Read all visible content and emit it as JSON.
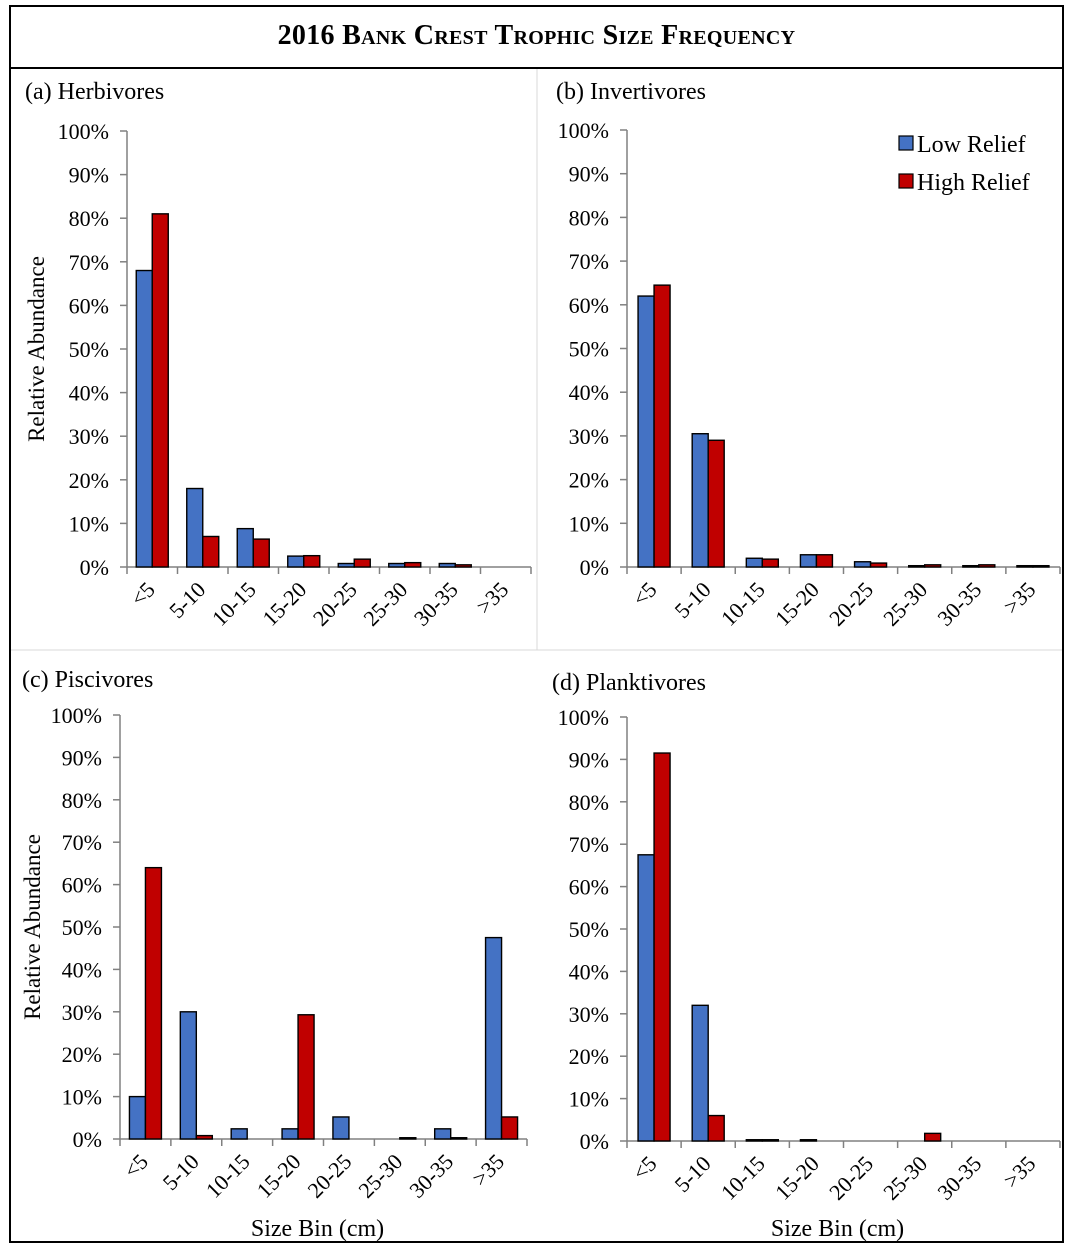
{
  "figure_title": "2016 Bank Crest Trophic Size Frequency",
  "colors": {
    "low_relief": "#4472C4",
    "high_relief": "#C00000",
    "axis": "#808080"
  },
  "legend": [
    "Low Relief",
    "High Relief"
  ],
  "chart_data": [
    {
      "type": "bar",
      "title": "(a) Herbivores",
      "xlabel": "",
      "ylabel": "Relative Abundance",
      "categories": [
        "<5",
        "5-10",
        "10-15",
        "15-20",
        "20-25",
        "25-30",
        "30-35",
        ">35"
      ],
      "yticks": [
        "0%",
        "10%",
        "20%",
        "30%",
        "40%",
        "50%",
        "60%",
        "70%",
        "80%",
        "90%",
        "100%"
      ],
      "ylim": [
        0,
        100
      ],
      "series": [
        {
          "name": "Low Relief",
          "values": [
            68,
            18,
            8.8,
            2.5,
            0.8,
            0.8,
            0.8,
            0
          ]
        },
        {
          "name": "High Relief",
          "values": [
            81,
            7,
            6.4,
            2.6,
            1.8,
            1.0,
            0.5,
            0
          ]
        }
      ]
    },
    {
      "type": "bar",
      "title": "(b) Invertivores",
      "xlabel": "",
      "ylabel": "",
      "categories": [
        "<5",
        "5-10",
        "10-15",
        "15-20",
        "20-25",
        "25-30",
        "30-35",
        ">35"
      ],
      "yticks": [
        "0%",
        "10%",
        "20%",
        "30%",
        "40%",
        "50%",
        "60%",
        "70%",
        "80%",
        "90%",
        "100%"
      ],
      "ylim": [
        0,
        100
      ],
      "legend": "top-right",
      "series": [
        {
          "name": "Low Relief",
          "values": [
            62,
            30.5,
            2,
            2.8,
            1.2,
            0.3,
            0.3,
            0.3
          ]
        },
        {
          "name": "High Relief",
          "values": [
            64.5,
            29,
            1.8,
            2.8,
            0.9,
            0.5,
            0.5,
            0.3
          ]
        }
      ]
    },
    {
      "type": "bar",
      "title": "(c) Piscivores",
      "xlabel": "Size Bin (cm)",
      "ylabel": "Relative Abundance",
      "categories": [
        "<5",
        "5-10",
        "10-15",
        "15-20",
        "20-25",
        "25-30",
        "30-35",
        ">35"
      ],
      "yticks": [
        "0%",
        "10%",
        "20%",
        "30%",
        "40%",
        "50%",
        "60%",
        "70%",
        "80%",
        "90%",
        "100%"
      ],
      "ylim": [
        0,
        100
      ],
      "series": [
        {
          "name": "Low Relief",
          "values": [
            10,
            30,
            2.4,
            2.4,
            5.2,
            0,
            2.4,
            47.5
          ]
        },
        {
          "name": "High Relief",
          "values": [
            64,
            0.8,
            0,
            29.3,
            0,
            0.3,
            0.3,
            5.2
          ]
        }
      ]
    },
    {
      "type": "bar",
      "title": "(d) Planktivores",
      "xlabel": "Size Bin (cm)",
      "ylabel": "",
      "categories": [
        "<5",
        "5-10",
        "10-15",
        "15-20",
        "20-25",
        "25-30",
        "30-35",
        ">35"
      ],
      "yticks": [
        "0%",
        "10%",
        "20%",
        "30%",
        "40%",
        "50%",
        "60%",
        "70%",
        "80%",
        "90%",
        "100%"
      ],
      "ylim": [
        0,
        100
      ],
      "series": [
        {
          "name": "Low Relief",
          "values": [
            67.5,
            32,
            0.3,
            0.3,
            0,
            0,
            0,
            0
          ]
        },
        {
          "name": "High Relief",
          "values": [
            91.5,
            6,
            0.3,
            0,
            0,
            1.8,
            0,
            0
          ]
        }
      ]
    }
  ]
}
